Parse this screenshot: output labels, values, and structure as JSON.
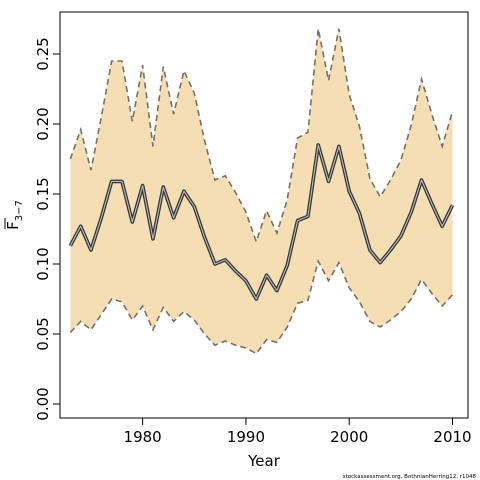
{
  "chart_data": {
    "type": "area",
    "xlabel": "Year",
    "ylabel_main": "F",
    "ylabel_sub": "3−7",
    "credit": "stockassessment.org, BothnianHerring12, r1048",
    "xlim": [
      1972,
      2011.5
    ],
    "ylim": [
      -0.01,
      0.28
    ],
    "x_ticks": [
      1980,
      1990,
      2000,
      2010
    ],
    "y_ticks": [
      0.0,
      0.05,
      0.1,
      0.15,
      0.2,
      0.25
    ],
    "y_tick_labels": [
      "0.00",
      "0.05",
      "0.10",
      "0.15",
      "0.20",
      "0.25"
    ],
    "grid": false,
    "colors": {
      "band": "#f5deb3",
      "line": "#333333",
      "bound": "#7a6f64"
    },
    "series": [
      {
        "role": "estimate",
        "x": [
          1973,
          1974,
          1975,
          1976,
          1977,
          1978,
          1979,
          1980,
          1981,
          1982,
          1983,
          1984,
          1985,
          1986,
          1987,
          1988,
          1989,
          1990,
          1991,
          1992,
          1993,
          1994,
          1995,
          1996,
          1997,
          1998,
          1999,
          2000,
          2001,
          2002,
          2003,
          2004,
          2005,
          2006,
          2007,
          2008,
          2009,
          2010
        ],
        "values": [
          0.113,
          0.127,
          0.11,
          0.133,
          0.159,
          0.159,
          0.13,
          0.156,
          0.118,
          0.155,
          0.133,
          0.152,
          0.141,
          0.119,
          0.1,
          0.103,
          0.095,
          0.088,
          0.075,
          0.092,
          0.081,
          0.099,
          0.131,
          0.134,
          0.185,
          0.159,
          0.184,
          0.152,
          0.136,
          0.11,
          0.101,
          0.11,
          0.12,
          0.137,
          0.16,
          0.143,
          0.127,
          0.142
        ]
      },
      {
        "role": "upper",
        "x": [
          1973,
          1974,
          1975,
          1976,
          1977,
          1978,
          1979,
          1980,
          1981,
          1982,
          1983,
          1984,
          1985,
          1986,
          1987,
          1988,
          1989,
          1990,
          1991,
          1992,
          1993,
          1994,
          1995,
          1996,
          1997,
          1998,
          1999,
          2000,
          2001,
          2002,
          2003,
          2004,
          2005,
          2006,
          2007,
          2008,
          2009,
          2010
        ],
        "values": [
          0.175,
          0.196,
          0.167,
          0.205,
          0.245,
          0.245,
          0.202,
          0.242,
          0.184,
          0.241,
          0.207,
          0.238,
          0.222,
          0.188,
          0.16,
          0.163,
          0.151,
          0.137,
          0.116,
          0.138,
          0.122,
          0.146,
          0.19,
          0.194,
          0.268,
          0.231,
          0.268,
          0.221,
          0.198,
          0.161,
          0.148,
          0.16,
          0.174,
          0.199,
          0.232,
          0.207,
          0.184,
          0.209
        ]
      },
      {
        "role": "lower",
        "x": [
          1973,
          1974,
          1975,
          1976,
          1977,
          1978,
          1979,
          1980,
          1981,
          1982,
          1983,
          1984,
          1985,
          1986,
          1987,
          1988,
          1989,
          1990,
          1991,
          1992,
          1993,
          1994,
          1995,
          1996,
          1997,
          1998,
          1999,
          2000,
          2001,
          2002,
          2003,
          2004,
          2005,
          2006,
          2007,
          2008,
          2009,
          2010
        ],
        "values": [
          0.051,
          0.059,
          0.053,
          0.064,
          0.075,
          0.073,
          0.06,
          0.07,
          0.053,
          0.069,
          0.059,
          0.066,
          0.06,
          0.05,
          0.042,
          0.045,
          0.042,
          0.04,
          0.036,
          0.046,
          0.044,
          0.055,
          0.072,
          0.074,
          0.102,
          0.088,
          0.101,
          0.083,
          0.073,
          0.059,
          0.055,
          0.06,
          0.066,
          0.075,
          0.089,
          0.079,
          0.07,
          0.078
        ]
      }
    ]
  }
}
